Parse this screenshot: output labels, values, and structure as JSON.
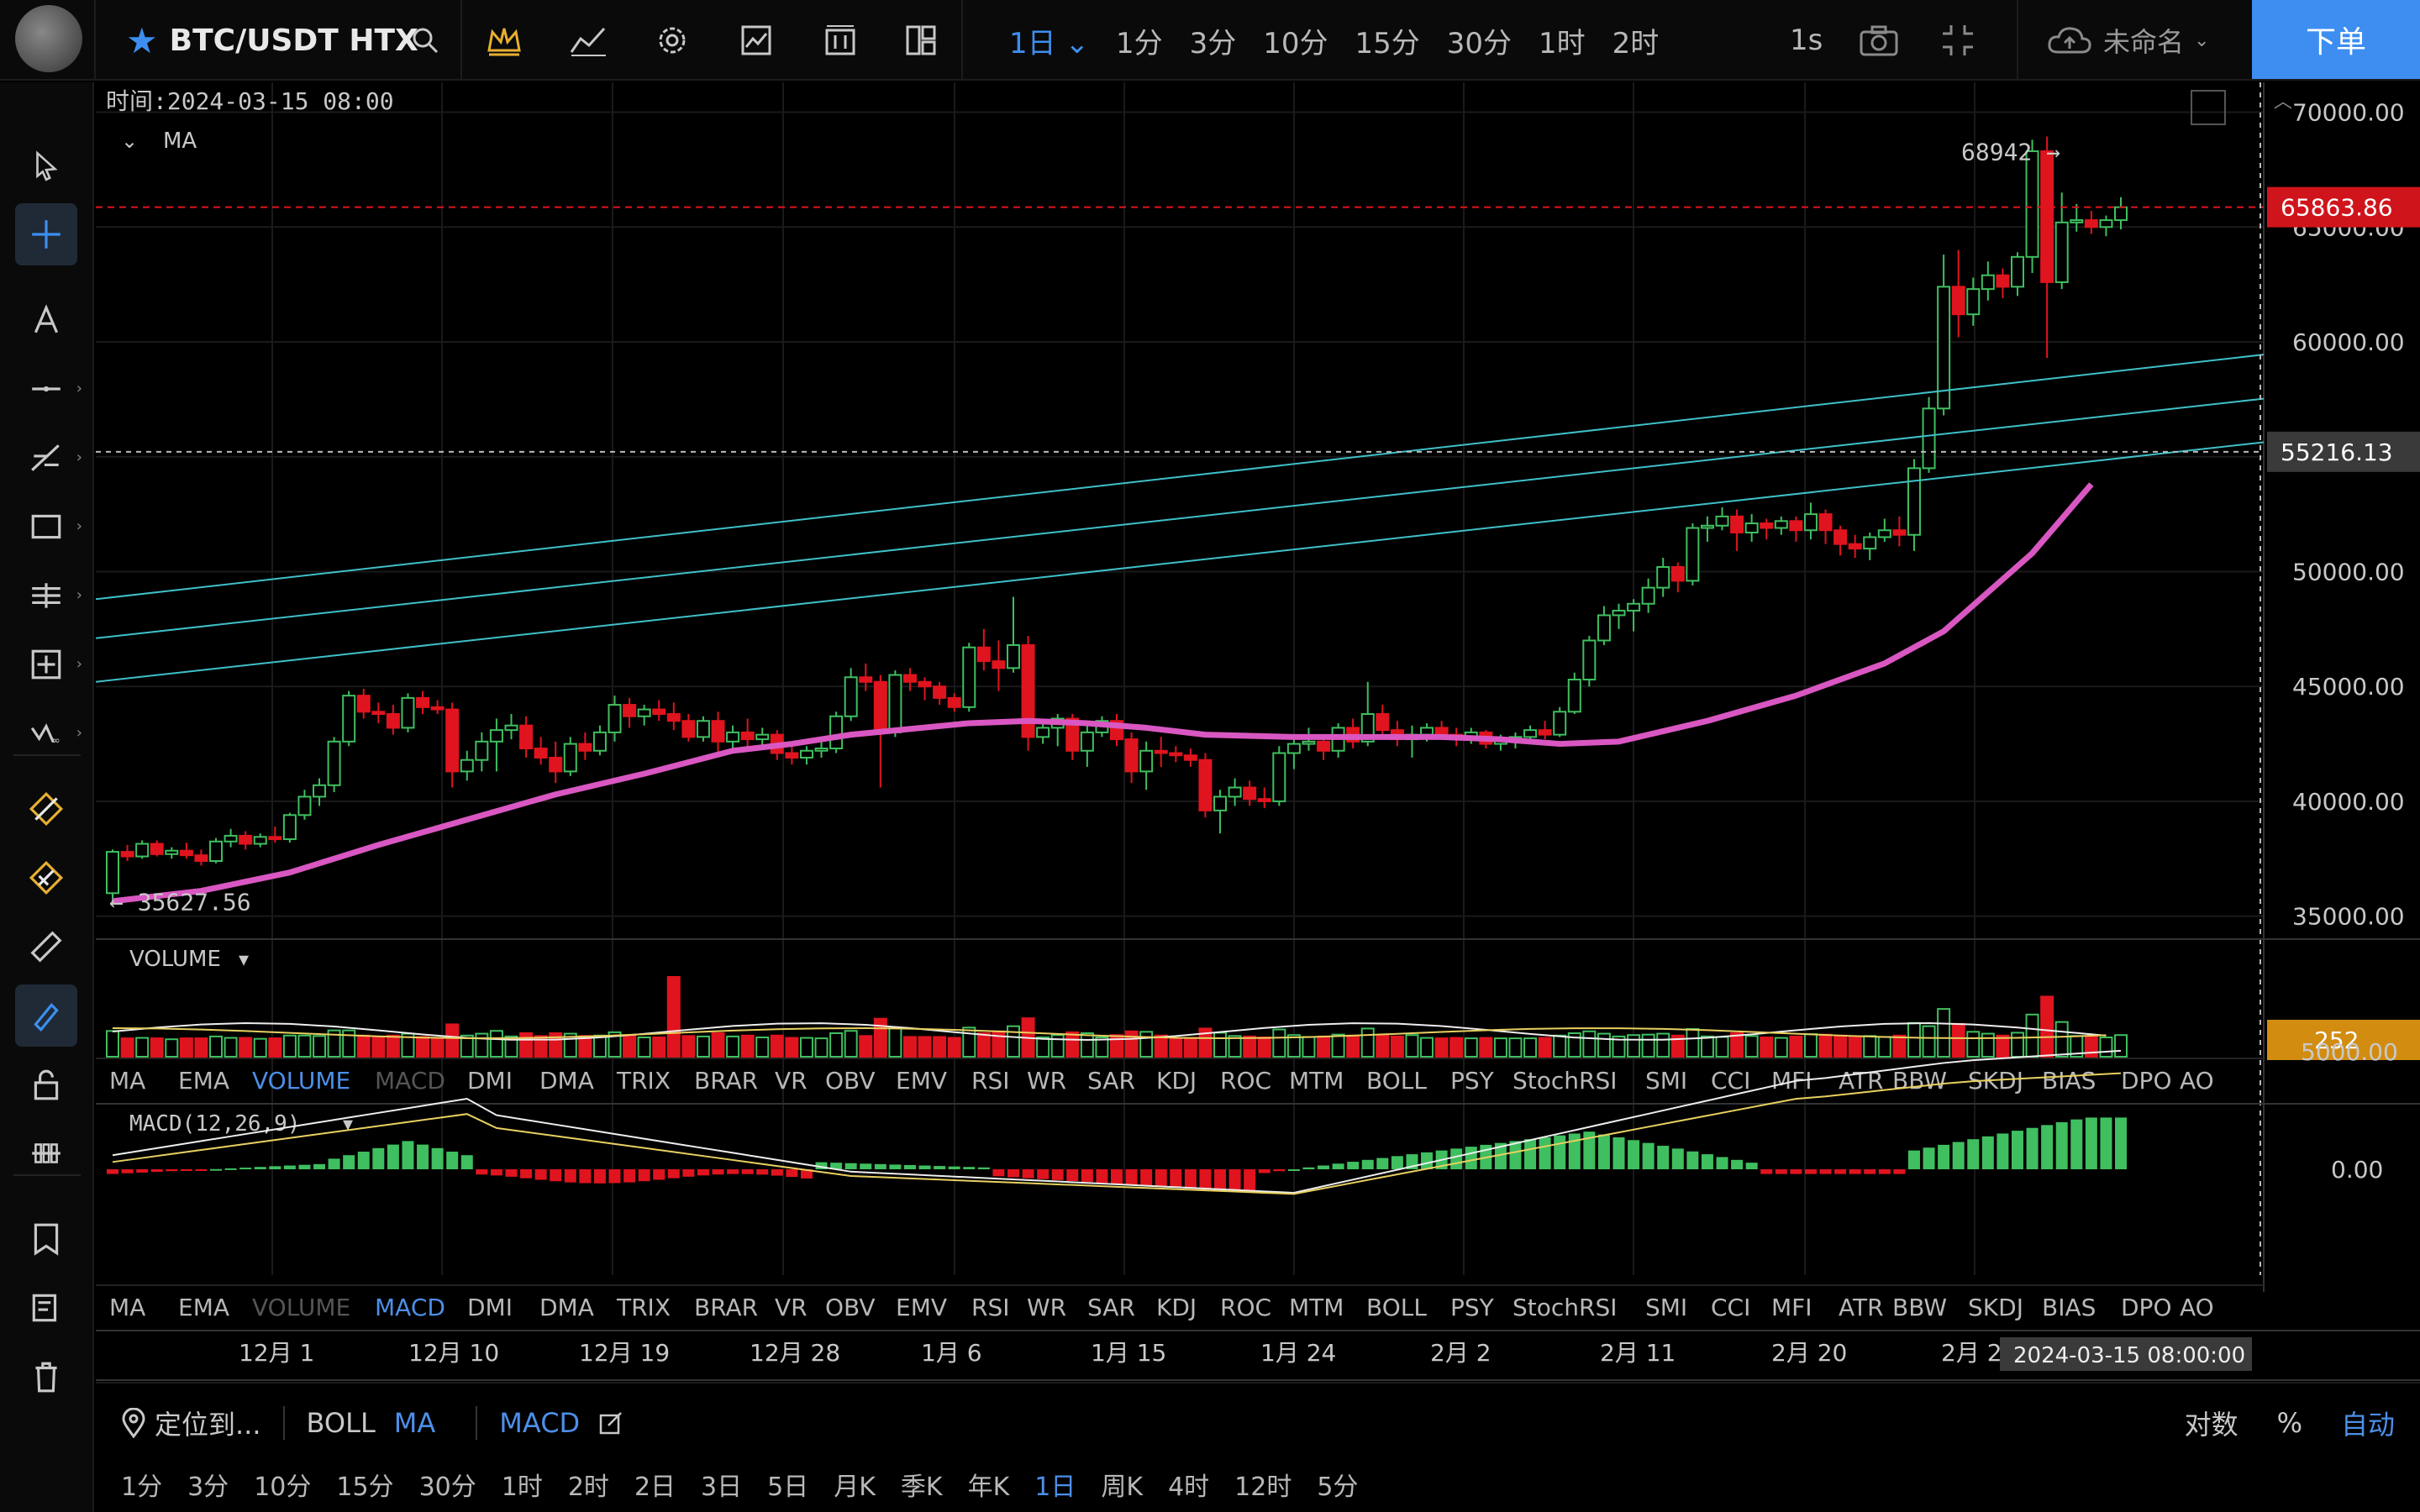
{
  "topbar": {
    "symbol": "BTC/USDT HTX",
    "intervals": [
      {
        "label": "1日",
        "active": true,
        "dropdown": true
      },
      {
        "label": "1分"
      },
      {
        "label": "3分"
      },
      {
        "label": "10分"
      },
      {
        "label": "15分"
      },
      {
        "label": "30分"
      },
      {
        "label": "1时"
      },
      {
        "label": "2时"
      }
    ],
    "refresh": "1s",
    "user": "未命名",
    "order_button": "下单",
    "icons": [
      "search-icon",
      "crown-icon",
      "indicators-icon",
      "settings-icon",
      "chart-type-icon",
      "compare-icon",
      "layout-icon",
      "camera-icon",
      "fullscreen-icon",
      "cloud-icon"
    ]
  },
  "left_tools": [
    "cursor-icon",
    "crosshair-icon",
    "text-icon",
    "trendline-icon",
    "fib-icon",
    "rect-icon",
    "horizontal-lines-icon",
    "measure-box-icon",
    "wave-icon",
    "magnet-icon",
    "magnet-strong-icon",
    "ruler-icon",
    "pen-icon",
    "lock-icon",
    "bars-icon",
    "bookmark-icon",
    "edit-list-icon",
    "trash-icon"
  ],
  "chart": {
    "time_label": "时间:2024-03-15 08:00",
    "ma_label": "MA",
    "high_marker": "68942",
    "low_marker": "35627.56",
    "current_price": "65863.86",
    "crosshair_price": "55216.13",
    "price_ticks": [
      "70000.00",
      "65000.00",
      "60000.00",
      "55000.00",
      "50000.00",
      "45000.00",
      "40000.00",
      "35000.00"
    ],
    "volume_label": "VOLUME",
    "volume_value": "252",
    "macd_label": "MACD(12,26,9)",
    "macd_ticks": [
      "5000.00",
      "0.00"
    ],
    "indicator_tabs": [
      "MA",
      "EMA",
      "VOLUME",
      "MACD",
      "DMI",
      "DMA",
      "TRIX",
      "BRAR",
      "VR",
      "OBV",
      "EMV",
      "RSI",
      "WR",
      "SAR",
      "KDJ",
      "ROC",
      "MTM",
      "BOLL",
      "PSY",
      "StochRSI",
      "SMI",
      "CCI",
      "MFI",
      "ATR",
      "BBW",
      "SKDJ",
      "BIAS",
      "DPO",
      "AO"
    ],
    "tabs_active_1": "VOLUME",
    "tabs_muted_1": "MACD",
    "tabs_active_2": "MACD",
    "tabs_muted_2": "VOLUME",
    "date_ticks": [
      "12月 1",
      "12月 10",
      "12月 19",
      "12月 28",
      "1月 6",
      "1月 15",
      "1月 24",
      "2月 2",
      "2月 11",
      "2月 20",
      "2月 29"
    ],
    "crosshair_time": "2024-03-15 08:00:00",
    "colors": {
      "up": "#3fbf5f",
      "down": "#e0141e",
      "ma": "#d957c2",
      "trend": "#3fc0c8"
    },
    "candles": [
      [
        36000,
        37900,
        35627,
        37800
      ],
      [
        37800,
        38100,
        37400,
        37600
      ],
      [
        37600,
        38300,
        37500,
        38150
      ],
      [
        38150,
        38300,
        37600,
        37700
      ],
      [
        37700,
        38000,
        37500,
        37850
      ],
      [
        37850,
        38200,
        37500,
        37650
      ],
      [
        37650,
        37900,
        37200,
        37400
      ],
      [
        37400,
        38400,
        37300,
        38250
      ],
      [
        38250,
        38800,
        38000,
        38500
      ],
      [
        38500,
        38700,
        37900,
        38150
      ],
      [
        38150,
        38600,
        38000,
        38450
      ],
      [
        38450,
        38900,
        38200,
        38350
      ],
      [
        38350,
        39500,
        38200,
        39400
      ],
      [
        39400,
        40500,
        39200,
        40200
      ],
      [
        40200,
        41000,
        39800,
        40700
      ],
      [
        40700,
        42800,
        40400,
        42600
      ],
      [
        42600,
        44800,
        42400,
        44600
      ],
      [
        44600,
        44900,
        43600,
        43900
      ],
      [
        43900,
        44300,
        43400,
        43800
      ],
      [
        43800,
        44200,
        42900,
        43200
      ],
      [
        43200,
        44700,
        43000,
        44500
      ],
      [
        44500,
        44800,
        43800,
        44100
      ],
      [
        44100,
        44400,
        43800,
        44000
      ],
      [
        44000,
        44300,
        40600,
        41300
      ],
      [
        41300,
        42200,
        40900,
        41800
      ],
      [
        41800,
        43000,
        41300,
        42600
      ],
      [
        42600,
        43600,
        41300,
        43100
      ],
      [
        43100,
        43800,
        42700,
        43300
      ],
      [
        43300,
        43700,
        41900,
        42300
      ],
      [
        42300,
        42800,
        41600,
        41900
      ],
      [
        41900,
        42600,
        40800,
        41300
      ],
      [
        41300,
        42800,
        41100,
        42500
      ],
      [
        42500,
        43000,
        41800,
        42200
      ],
      [
        42200,
        43300,
        42000,
        43000
      ],
      [
        43000,
        44600,
        42600,
        44200
      ],
      [
        44200,
        44500,
        43200,
        43700
      ],
      [
        43700,
        44200,
        43300,
        44000
      ],
      [
        44000,
        44400,
        43500,
        43800
      ],
      [
        43800,
        44300,
        43100,
        43500
      ],
      [
        43500,
        43800,
        42600,
        42800
      ],
      [
        42800,
        43700,
        42600,
        43500
      ],
      [
        43500,
        43900,
        42100,
        42600
      ],
      [
        42600,
        43300,
        42200,
        43000
      ],
      [
        43000,
        43600,
        42300,
        42700
      ],
      [
        42700,
        43200,
        42300,
        42900
      ],
      [
        42900,
        43100,
        41800,
        42100
      ],
      [
        42100,
        42400,
        41600,
        41900
      ],
      [
        41900,
        42400,
        41600,
        42200
      ],
      [
        42200,
        42600,
        41900,
        42300
      ],
      [
        42300,
        43900,
        42100,
        43700
      ],
      [
        43700,
        45800,
        43500,
        45400
      ],
      [
        45400,
        46000,
        44800,
        45200
      ],
      [
        45200,
        45500,
        40600,
        43000
      ],
      [
        43000,
        45700,
        42800,
        45500
      ],
      [
        45500,
        45800,
        44800,
        45200
      ],
      [
        45200,
        45400,
        44400,
        45000
      ],
      [
        45000,
        45200,
        44200,
        44500
      ],
      [
        44500,
        44700,
        43900,
        44100
      ],
      [
        44100,
        46900,
        43900,
        46700
      ],
      [
        46700,
        47500,
        45700,
        46100
      ],
      [
        46100,
        47000,
        44800,
        45800
      ],
      [
        45800,
        48900,
        45600,
        46800
      ],
      [
        46800,
        47200,
        42200,
        42800
      ],
      [
        42800,
        43400,
        42500,
        43200
      ],
      [
        43200,
        43800,
        42400,
        43600
      ],
      [
        43600,
        43800,
        41800,
        42200
      ],
      [
        42200,
        43300,
        41500,
        43000
      ],
      [
        43000,
        43700,
        42800,
        43500
      ],
      [
        43500,
        43800,
        42400,
        42700
      ],
      [
        42700,
        43000,
        40800,
        41300
      ],
      [
        41300,
        42600,
        40500,
        42200
      ],
      [
        42200,
        42800,
        41500,
        42100
      ],
      [
        42100,
        42400,
        41700,
        42000
      ],
      [
        42000,
        42300,
        41500,
        41800
      ],
      [
        41800,
        42100,
        39300,
        39600
      ],
      [
        39600,
        40500,
        38600,
        40200
      ],
      [
        40200,
        41000,
        39800,
        40600
      ],
      [
        40600,
        40900,
        39800,
        40100
      ],
      [
        40100,
        40600,
        39700,
        40000
      ],
      [
        40000,
        42400,
        39800,
        42100
      ],
      [
        42100,
        42800,
        41400,
        42500
      ],
      [
        42500,
        43200,
        42200,
        42600
      ],
      [
        42600,
        42900,
        41800,
        42200
      ],
      [
        42200,
        43400,
        41900,
        43200
      ],
      [
        43200,
        43600,
        42300,
        42600
      ],
      [
        42600,
        45200,
        42400,
        43800
      ],
      [
        43800,
        44200,
        42800,
        43100
      ],
      [
        43100,
        43500,
        42400,
        42700
      ],
      [
        42700,
        43300,
        41900,
        42900
      ],
      [
        42900,
        43400,
        42600,
        43200
      ],
      [
        43200,
        43500,
        42800,
        42900
      ],
      [
        42900,
        43200,
        42400,
        42700
      ],
      [
        42700,
        43200,
        42500,
        43000
      ],
      [
        43000,
        43100,
        42300,
        42500
      ],
      [
        42500,
        42900,
        42200,
        42700
      ],
      [
        42700,
        43000,
        42300,
        42800
      ],
      [
        42800,
        43300,
        42600,
        43100
      ],
      [
        43100,
        43500,
        42700,
        42900
      ],
      [
        42900,
        44100,
        42800,
        43900
      ],
      [
        43900,
        45600,
        43800,
        45300
      ],
      [
        45300,
        47200,
        45000,
        47000
      ],
      [
        47000,
        48500,
        46800,
        48100
      ],
      [
        48100,
        48600,
        47500,
        48300
      ],
      [
        48300,
        48800,
        47400,
        48600
      ],
      [
        48600,
        49700,
        48200,
        49300
      ],
      [
        49300,
        50600,
        48900,
        50200
      ],
      [
        50200,
        50400,
        49100,
        49600
      ],
      [
        49600,
        52100,
        49400,
        51900
      ],
      [
        51900,
        52400,
        51300,
        52000
      ],
      [
        52000,
        52800,
        51800,
        52400
      ],
      [
        52400,
        52700,
        50900,
        51700
      ],
      [
        51700,
        52500,
        51300,
        52100
      ],
      [
        52100,
        52300,
        51400,
        51900
      ],
      [
        51900,
        52400,
        51600,
        52200
      ],
      [
        52200,
        52400,
        51300,
        51800
      ],
      [
        51800,
        53000,
        51400,
        52500
      ],
      [
        52500,
        52700,
        51200,
        51800
      ],
      [
        51800,
        52000,
        50700,
        51200
      ],
      [
        51200,
        51600,
        50600,
        51000
      ],
      [
        51000,
        51700,
        50500,
        51500
      ],
      [
        51500,
        52300,
        51300,
        51800
      ],
      [
        51800,
        52400,
        51100,
        51600
      ],
      [
        51600,
        54900,
        50900,
        54500
      ],
      [
        54500,
        57600,
        54300,
        57100
      ],
      [
        57100,
        63800,
        56800,
        62400
      ],
      [
        62400,
        64000,
        60200,
        61200
      ],
      [
        61200,
        62800,
        60700,
        62300
      ],
      [
        62300,
        63500,
        61800,
        62900
      ],
      [
        62900,
        63200,
        61900,
        62400
      ],
      [
        62400,
        63900,
        62000,
        63700
      ],
      [
        63700,
        68800,
        63000,
        68300
      ],
      [
        68300,
        68942,
        59300,
        62600
      ],
      [
        62600,
        66500,
        62300,
        65200
      ],
      [
        65200,
        66000,
        64800,
        65300
      ],
      [
        65300,
        65700,
        64700,
        65000
      ],
      [
        65000,
        65500,
        64600,
        65300
      ],
      [
        65300,
        66300,
        64900,
        65863
      ]
    ],
    "ma_line": [
      [
        0,
        35650
      ],
      [
        6,
        36100
      ],
      [
        12,
        36900
      ],
      [
        18,
        38100
      ],
      [
        24,
        39200
      ],
      [
        30,
        40300
      ],
      [
        36,
        41200
      ],
      [
        42,
        42200
      ],
      [
        46,
        42500
      ],
      [
        50,
        42900
      ],
      [
        58,
        43400
      ],
      [
        62,
        43500
      ],
      [
        66,
        43400
      ],
      [
        70,
        43200
      ],
      [
        74,
        42900
      ],
      [
        80,
        42800
      ],
      [
        86,
        42800
      ],
      [
        90,
        42800
      ],
      [
        94,
        42700
      ],
      [
        98,
        42500
      ],
      [
        102,
        42600
      ],
      [
        108,
        43500
      ],
      [
        114,
        44600
      ],
      [
        120,
        46000
      ],
      [
        124,
        47400
      ],
      [
        130,
        50800
      ],
      [
        134,
        53800
      ]
    ],
    "trendlines": [
      [
        [
          0,
          48800
        ],
        [
          134,
          58600
        ]
      ],
      [
        [
          0,
          47100
        ],
        [
          134,
          56700
        ]
      ],
      [
        [
          0,
          45200
        ],
        [
          134,
          54800
        ]
      ]
    ]
  }
}
